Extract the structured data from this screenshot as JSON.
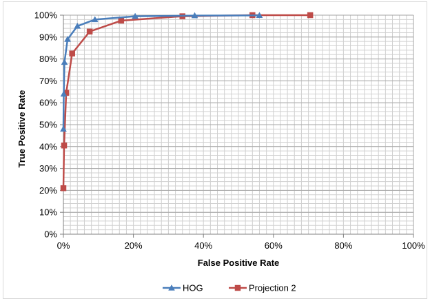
{
  "chart_data": {
    "type": "line",
    "xlabel": "False Positive Rate",
    "ylabel": "True Positive Rate",
    "xlim": [
      0,
      1
    ],
    "ylim": [
      0,
      1
    ],
    "x_ticks": [
      "0%",
      "20%",
      "40%",
      "60%",
      "80%",
      "100%"
    ],
    "y_ticks": [
      "0%",
      "10%",
      "20%",
      "30%",
      "40%",
      "50%",
      "60%",
      "70%",
      "80%",
      "90%",
      "100%"
    ],
    "grid": true,
    "legend_position": "bottom",
    "series": [
      {
        "name": "HOG",
        "color": "#4a7ebb",
        "marker": "triangle",
        "x": [
          0.0,
          0.001,
          0.003,
          0.012,
          0.04,
          0.09,
          0.205,
          0.375,
          0.56
        ],
        "y": [
          0.48,
          0.64,
          0.785,
          0.89,
          0.95,
          0.98,
          0.995,
          0.998,
          0.999
        ]
      },
      {
        "name": "Projection 2",
        "color": "#be4b48",
        "marker": "square",
        "x": [
          0.0,
          0.002,
          0.008,
          0.025,
          0.075,
          0.165,
          0.34,
          0.54,
          0.705
        ],
        "y": [
          0.21,
          0.405,
          0.645,
          0.825,
          0.925,
          0.975,
          0.995,
          1.0,
          1.0
        ]
      }
    ]
  }
}
